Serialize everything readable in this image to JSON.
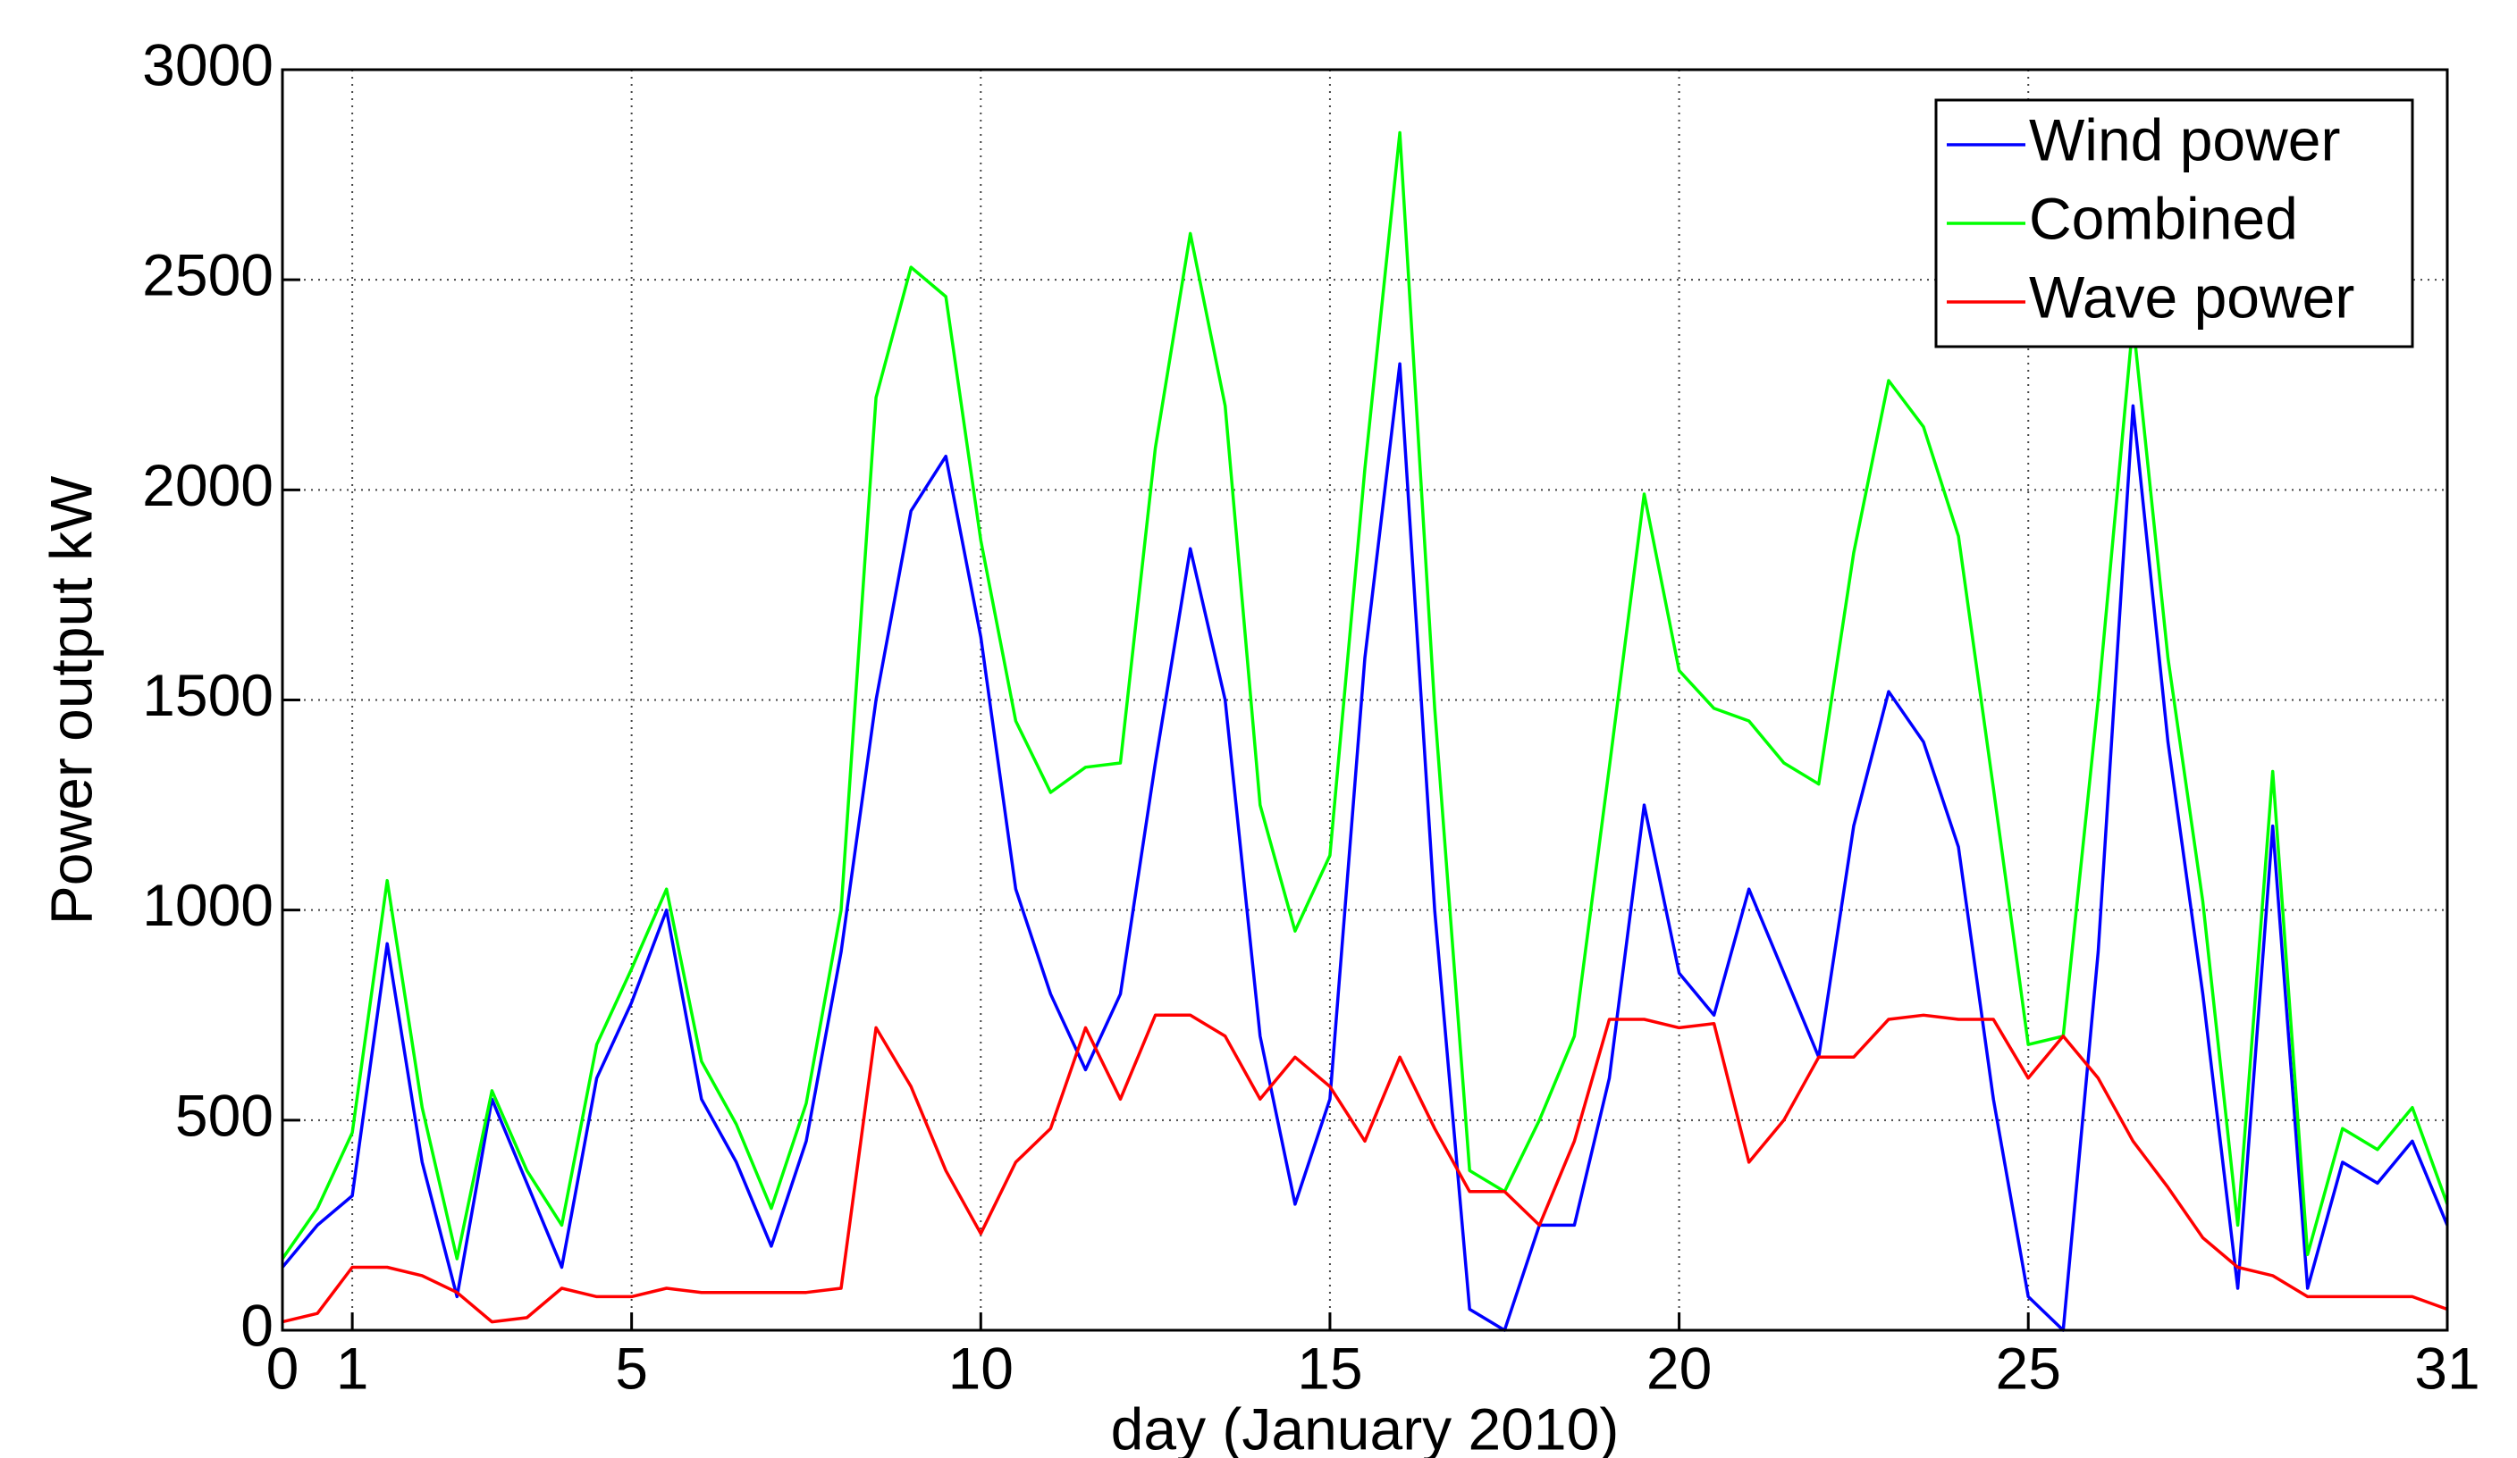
{
  "chart_data": {
    "type": "line",
    "xlabel": "day (January 2010)",
    "ylabel": "Power output kW",
    "x": [
      0,
      0.5,
      1,
      1.5,
      2,
      2.5,
      3,
      3.5,
      4,
      4.5,
      5,
      5.5,
      6,
      6.5,
      7,
      7.5,
      8,
      8.5,
      9,
      9.5,
      10,
      10.5,
      11,
      11.5,
      12,
      12.5,
      13,
      13.5,
      14,
      14.5,
      15,
      15.5,
      16,
      16.5,
      17,
      17.5,
      18,
      18.5,
      19,
      19.5,
      20,
      20.5,
      21,
      21.5,
      22,
      22.5,
      23,
      23.5,
      24,
      24.5,
      25,
      25.5,
      26,
      26.5,
      27,
      27.5,
      28,
      28.5,
      29,
      29.5,
      30,
      30.5,
      31
    ],
    "series": [
      {
        "name": "Wind power",
        "color": "#0000ff",
        "values": [
          150,
          250,
          320,
          920,
          400,
          80,
          550,
          350,
          150,
          600,
          780,
          1000,
          550,
          400,
          200,
          450,
          900,
          1500,
          1950,
          2080,
          1650,
          1050,
          800,
          620,
          800,
          1350,
          1860,
          1500,
          700,
          300,
          550,
          1600,
          2300,
          1000,
          50,
          0,
          250,
          250,
          600,
          1250,
          850,
          750,
          1050,
          850,
          650,
          1200,
          1520,
          1400,
          1150,
          550,
          80,
          0,
          900,
          2200,
          1400,
          800,
          100,
          1200,
          100,
          400,
          350,
          450,
          250
        ]
      },
      {
        "name": "Combined",
        "color": "#00ff00",
        "values": [
          170,
          290,
          470,
          1070,
          530,
          170,
          570,
          380,
          250,
          680,
          860,
          1050,
          640,
          490,
          290,
          540,
          1000,
          2220,
          2530,
          2460,
          1880,
          1450,
          1280,
          1340,
          1350,
          2100,
          2610,
          2200,
          1250,
          950,
          1130,
          2050,
          2850,
          1480,
          380,
          330,
          500,
          700,
          1340,
          1990,
          1570,
          1480,
          1450,
          1350,
          1300,
          1850,
          2260,
          2150,
          1890,
          1290,
          680,
          700,
          1500,
          2400,
          1600,
          1020,
          250,
          1330,
          180,
          480,
          430,
          530,
          300
        ]
      },
      {
        "name": "Wave power",
        "color": "#ff0000",
        "values": [
          20,
          40,
          150,
          150,
          130,
          90,
          20,
          30,
          100,
          80,
          80,
          100,
          90,
          90,
          90,
          90,
          100,
          720,
          580,
          380,
          230,
          400,
          480,
          720,
          550,
          750,
          750,
          700,
          550,
          650,
          580,
          450,
          650,
          480,
          330,
          330,
          250,
          450,
          740,
          740,
          720,
          730,
          400,
          500,
          650,
          650,
          740,
          750,
          740,
          740,
          600,
          700,
          600,
          450,
          340,
          220,
          150,
          130,
          80,
          80,
          80,
          80,
          50
        ]
      }
    ],
    "xlim": [
      0,
      31
    ],
    "xticks": [
      0,
      1,
      5,
      10,
      15,
      20,
      25,
      31
    ],
    "ylim": [
      0,
      3000
    ],
    "yticks": [
      0,
      500,
      1000,
      1500,
      2000,
      2500,
      3000
    ],
    "grid": true,
    "legend": "upper right"
  }
}
